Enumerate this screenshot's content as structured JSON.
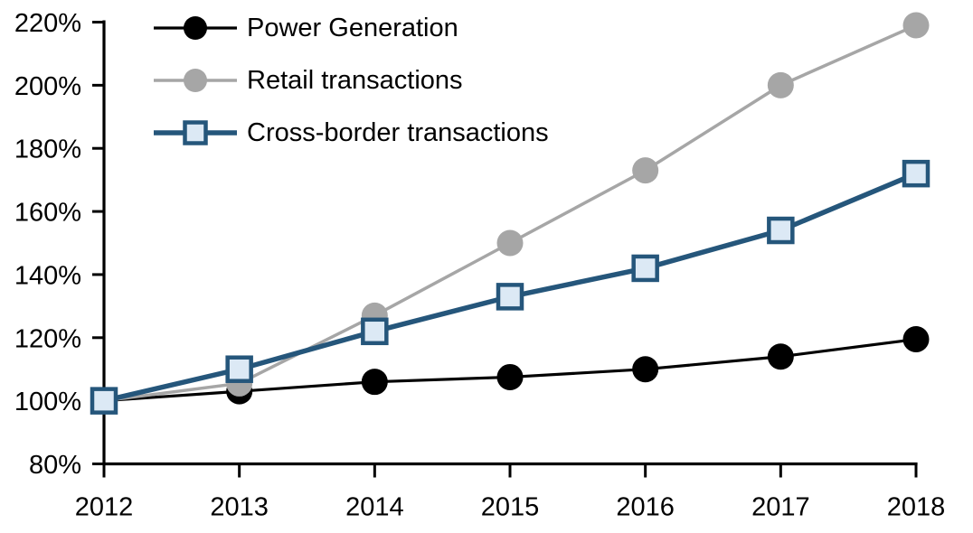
{
  "chart_data": {
    "type": "line",
    "title": "",
    "categories": [
      "2012",
      "2013",
      "2014",
      "2015",
      "2016",
      "2017",
      "2018"
    ],
    "series": [
      {
        "name": "Power Generation",
        "values": [
          100,
          103,
          106,
          107.5,
          110,
          114,
          119.5
        ],
        "color": "#000000",
        "marker": "circle",
        "marker_fill": "#000000",
        "line_width": 3.2
      },
      {
        "name": "Retail transactions",
        "values": [
          100,
          105.5,
          127,
          150,
          173,
          200,
          219
        ],
        "color": "#A6A6A6",
        "marker": "circle",
        "marker_fill": "#A6A6A6",
        "line_width": 3.5
      },
      {
        "name": "Cross-border transactions",
        "values": [
          100,
          110,
          122,
          133,
          142,
          154,
          172
        ],
        "color": "#25567B",
        "marker": "square",
        "marker_fill": "#DCE9F5",
        "line_width": 5.5
      }
    ],
    "x_axis": {
      "label": "",
      "tick_labels": [
        "2012",
        "2013",
        "2014",
        "2015",
        "2016",
        "2017",
        "2018"
      ]
    },
    "y_axis": {
      "label": "",
      "min": 80,
      "max": 220,
      "step": 20,
      "tick_suffix": "%",
      "tick_labels": [
        "80%",
        "100%",
        "120%",
        "140%",
        "160%",
        "180%",
        "200%",
        "220%"
      ]
    },
    "legend_position": "top-left",
    "grid": false,
    "background_color": "#FFFFFF",
    "axis_color": "#000000"
  }
}
